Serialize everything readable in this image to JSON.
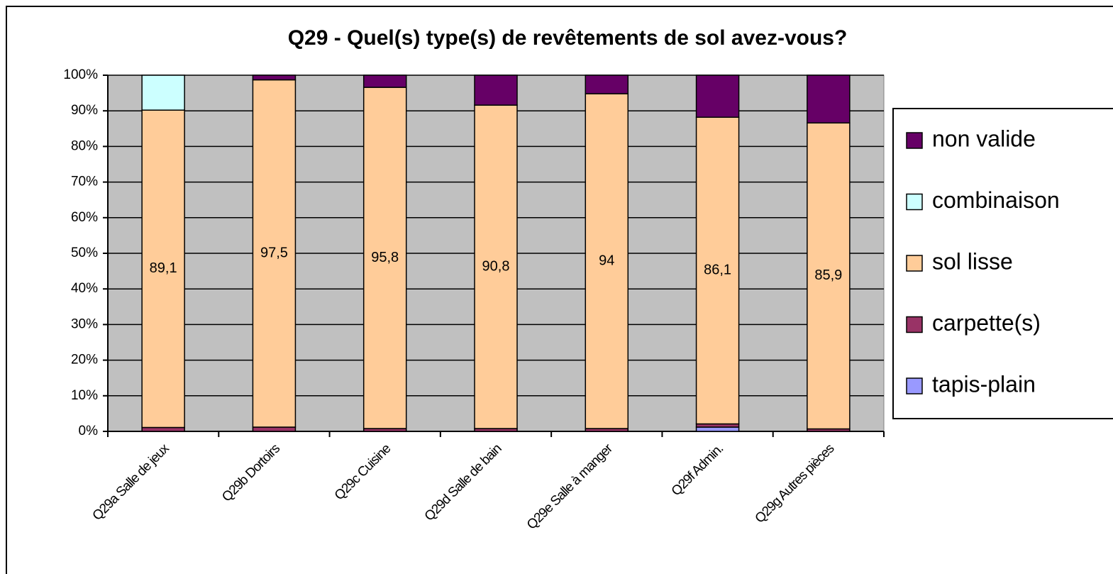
{
  "chart_data": {
    "type": "stacked_bar",
    "title": "Q29 - Quel(s) type(s) de revêtements de sol avez-vous?",
    "categories": [
      "Q29a Salle de jeux",
      "Q29b Dortoirs",
      "Q29c Cuisine",
      "Q29d Salle de bain",
      "Q29e Salle à manger",
      "Q29f Admin.",
      "Q29g Autres pièces"
    ],
    "series": [
      {
        "name": "tapis-plain",
        "color": "#9999ff",
        "values": [
          0,
          0,
          0,
          0,
          0,
          1.2,
          0
        ]
      },
      {
        "name": "carpette(s)",
        "color": "#993366",
        "values": [
          1.1,
          1.2,
          0.8,
          0.8,
          0.8,
          0.9,
          0.7
        ]
      },
      {
        "name": "sol lisse",
        "color": "#ffcc99",
        "values": [
          89.1,
          97.5,
          95.8,
          90.8,
          94,
          86.1,
          85.9
        ],
        "value_labels": [
          "89,1",
          "97,5",
          "95,8",
          "90,8",
          "94",
          "86,1",
          "85,9"
        ]
      },
      {
        "name": "combinaison",
        "color": "#ccffff",
        "values": [
          9.8,
          0,
          0,
          0,
          0,
          0,
          0
        ]
      },
      {
        "name": "non valide",
        "color": "#660066",
        "values": [
          0,
          1.3,
          3.4,
          8.4,
          5.2,
          11.8,
          13.4
        ]
      }
    ],
    "ylim": [
      0,
      100
    ],
    "yticks": [
      {
        "value": 0,
        "label": "0%"
      },
      {
        "value": 10,
        "label": "10%"
      },
      {
        "value": 20,
        "label": "20%"
      },
      {
        "value": 30,
        "label": "30%"
      },
      {
        "value": 40,
        "label": "40%"
      },
      {
        "value": 50,
        "label": "50%"
      },
      {
        "value": 60,
        "label": "60%"
      },
      {
        "value": 70,
        "label": "70%"
      },
      {
        "value": 80,
        "label": "80%"
      },
      {
        "value": 90,
        "label": "90%"
      },
      {
        "value": 100,
        "label": "100%"
      }
    ],
    "grid": true,
    "legend": "right",
    "plot_background": "#c0c0c0"
  }
}
